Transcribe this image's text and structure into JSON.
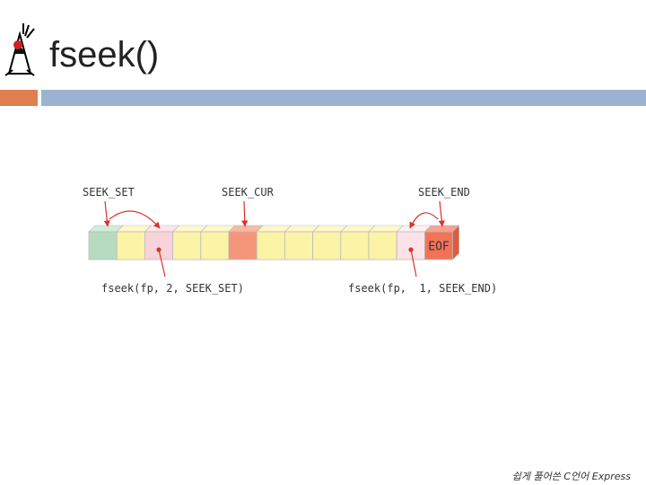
{
  "slide": {
    "title": "fseek()"
  },
  "diagram": {
    "pointers": [
      "SEEK_SET",
      "SEEK_CUR",
      "SEEK_END"
    ],
    "end_cell": "EOF",
    "calls": [
      "fseek(fp, 2, SEEK_SET)",
      "fseek(fp,  1, SEEK_END)"
    ]
  },
  "footer": "쉽게 풀어쓴 C언어 Express"
}
